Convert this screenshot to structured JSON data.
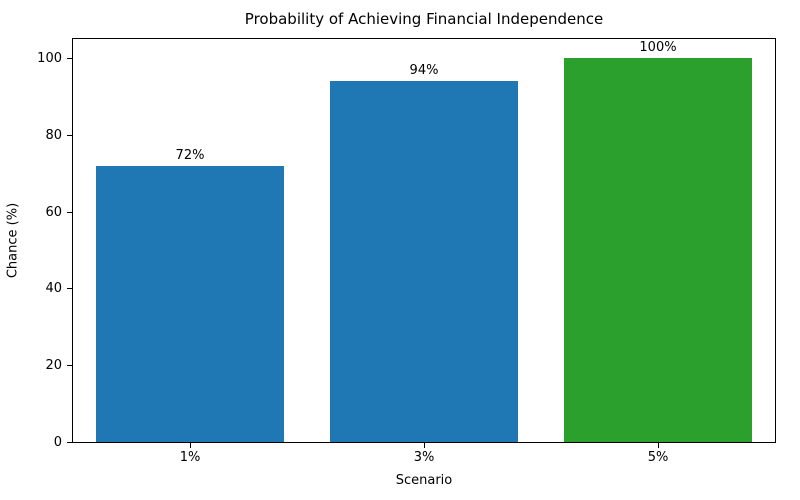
{
  "chart_data": {
    "type": "bar",
    "title": "Probability of Achieving Financial Independence",
    "xlabel": "Scenario",
    "ylabel": "Chance (%)",
    "categories": [
      "1%",
      "3%",
      "5%"
    ],
    "values": [
      72,
      94,
      100
    ],
    "bar_labels": [
      "72%",
      "94%",
      "100%"
    ],
    "bar_colors": [
      "#1f77b4",
      "#1f77b4",
      "#2ca02c"
    ],
    "ylim": [
      0,
      105
    ],
    "yticks": [
      0,
      20,
      40,
      60,
      80,
      100
    ],
    "grid": false,
    "legend": "none",
    "spine_color": "#000000",
    "background_color": "#ffffff"
  }
}
